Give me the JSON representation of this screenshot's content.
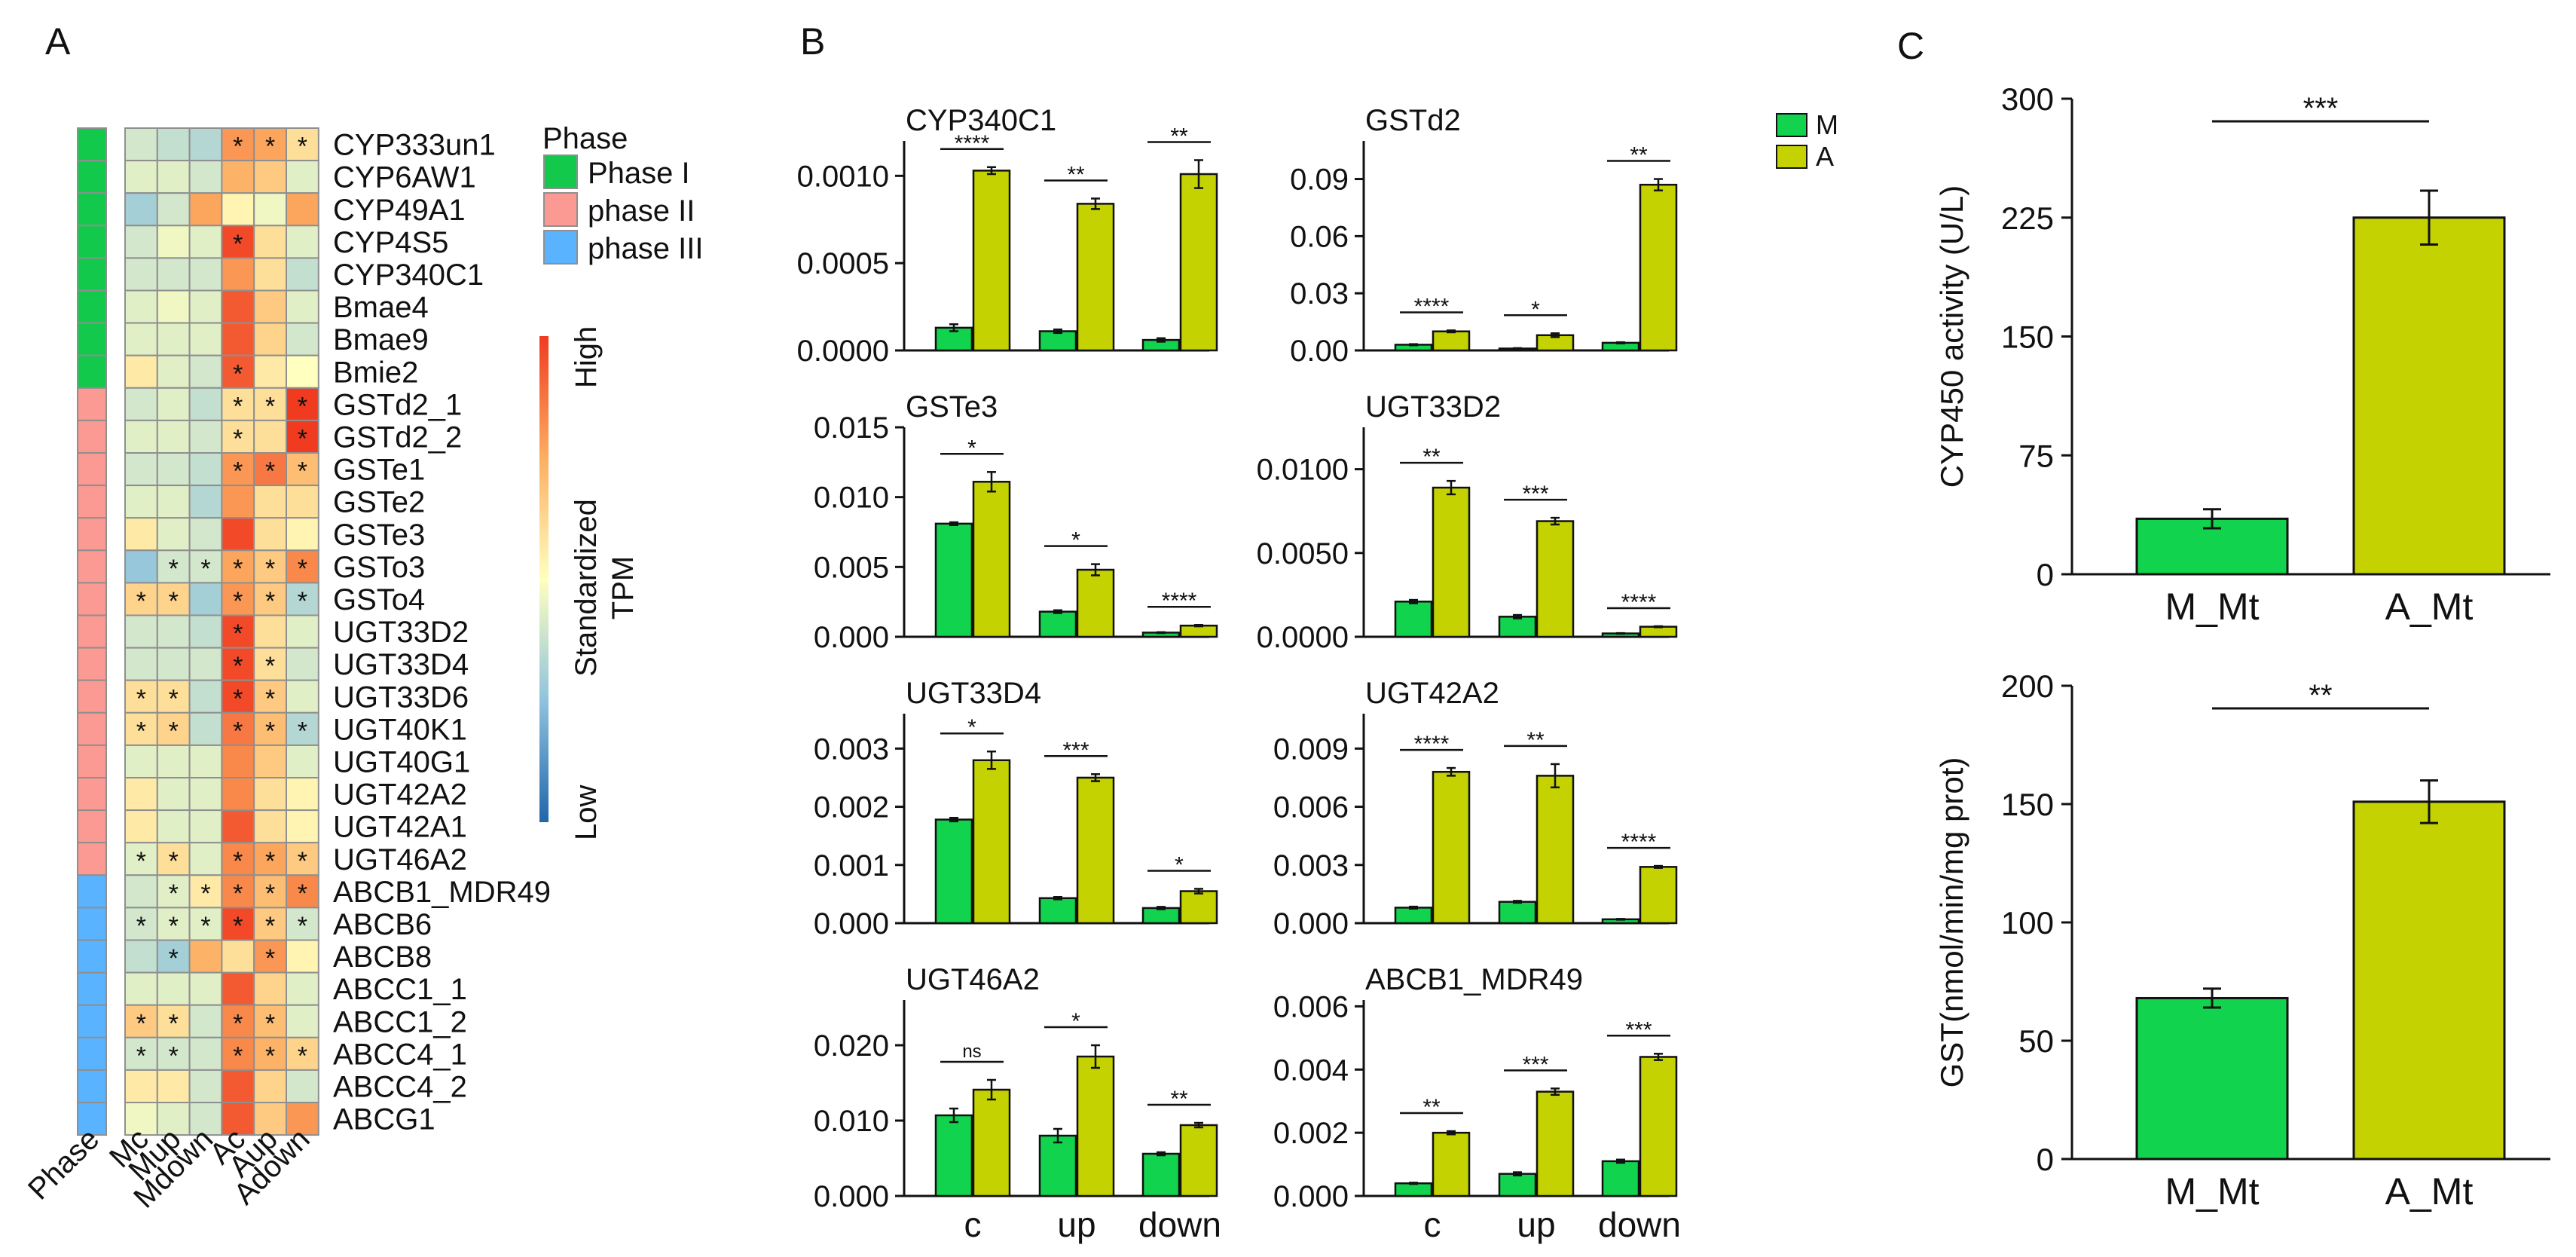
{
  "colors": {
    "M": "#11d34d",
    "A": "#c3d200",
    "phase_I": "#12c94c",
    "phase_II": "#fb9a92",
    "phase_III": "#5ab3ff",
    "cell_border": "#8f8f8f",
    "axis": "#111111"
  },
  "chart_data": [
    {
      "id": "A",
      "type": "heatmap",
      "panel_label": "A",
      "columns": [
        "Mc",
        "Mup",
        "Mdown",
        "Ac",
        "Aup",
        "Adown"
      ],
      "phase_column_label": "Phase",
      "legend": {
        "phase_title": "Phase",
        "phases": [
          "Phase I",
          "phase II",
          "phase III"
        ],
        "colorbar_title": "Standardized TPM",
        "colorbar_title_lines": [
          "Standardized",
          "TPM"
        ],
        "high_label": "High",
        "low_label": "Low",
        "scale": [
          -1.5,
          1.5
        ]
      },
      "genes": [
        "CYP333un1",
        "CYP6AW1",
        "CYP49A1",
        "CYP4S5",
        "CYP340C1",
        "Bmae4",
        "Bmae9",
        "Bmie2",
        "GSTd2_1",
        "GSTd2_2",
        "GSTe1",
        "GSTe2",
        "GSTe3",
        "GSTo3",
        "GSTo4",
        "UGT33D2",
        "UGT33D4",
        "UGT33D6",
        "UGT40K1",
        "UGT40G1",
        "UGT42A2",
        "UGT42A1",
        "UGT46A2",
        "ABCB1_MDR49",
        "ABCB6",
        "ABCB8",
        "ABCC1_1",
        "ABCC1_2",
        "ABCC4_1",
        "ABCC4_2",
        "ABCG1"
      ],
      "phase": [
        "I",
        "I",
        "I",
        "I",
        "I",
        "I",
        "I",
        "I",
        "II",
        "II",
        "II",
        "II",
        "II",
        "II",
        "II",
        "II",
        "II",
        "II",
        "II",
        "II",
        "II",
        "II",
        "II",
        "III",
        "III",
        "III",
        "III",
        "III",
        "III",
        "III",
        "III"
      ],
      "values": [
        [
          -0.3,
          -0.4,
          -0.5,
          0.9,
          0.8,
          0.3
        ],
        [
          -0.2,
          -0.2,
          -0.3,
          0.7,
          0.5,
          -0.2
        ],
        [
          -0.6,
          -0.3,
          0.8,
          0.1,
          -0.1,
          0.8
        ],
        [
          -0.3,
          -0.1,
          -0.2,
          1.4,
          0.3,
          -0.2
        ],
        [
          -0.3,
          -0.3,
          -0.3,
          0.9,
          0.3,
          -0.4
        ],
        [
          -0.2,
          -0.1,
          -0.2,
          1.3,
          0.5,
          -0.2
        ],
        [
          -0.2,
          -0.2,
          -0.2,
          1.3,
          0.4,
          -0.3
        ],
        [
          0.2,
          -0.2,
          -0.3,
          1.3,
          0.2,
          0.0
        ],
        [
          -0.3,
          -0.2,
          -0.4,
          0.3,
          0.3,
          1.5
        ],
        [
          -0.2,
          -0.2,
          -0.3,
          0.3,
          0.3,
          1.5
        ],
        [
          -0.3,
          -0.3,
          -0.4,
          0.9,
          1.1,
          0.6
        ],
        [
          -0.2,
          -0.2,
          -0.5,
          0.9,
          0.3,
          0.3
        ],
        [
          0.2,
          -0.2,
          -0.3,
          1.4,
          0.3,
          0.1
        ],
        [
          -0.7,
          -0.3,
          -0.3,
          0.8,
          0.5,
          1.0
        ],
        [
          0.4,
          0.4,
          -0.6,
          0.9,
          0.5,
          -0.5
        ],
        [
          -0.3,
          -0.3,
          -0.4,
          1.4,
          0.3,
          -0.2
        ],
        [
          -0.3,
          -0.3,
          -0.3,
          1.4,
          0.3,
          -0.3
        ],
        [
          0.3,
          0.3,
          -0.4,
          1.4,
          0.5,
          -0.2
        ],
        [
          0.3,
          0.4,
          -0.4,
          1.1,
          0.6,
          -0.5
        ],
        [
          -0.2,
          -0.2,
          -0.2,
          1.0,
          0.5,
          -0.2
        ],
        [
          0.2,
          -0.2,
          -0.2,
          1.0,
          0.3,
          0.1
        ],
        [
          0.2,
          -0.2,
          -0.2,
          1.3,
          0.3,
          0.1
        ],
        [
          -0.2,
          0.3,
          -0.2,
          1.0,
          0.8,
          0.5
        ],
        [
          -0.3,
          -0.2,
          0.2,
          1.0,
          0.6,
          1.0
        ],
        [
          -0.3,
          -0.2,
          -0.2,
          1.4,
          0.5,
          -0.3
        ],
        [
          -0.4,
          -0.6,
          0.7,
          0.3,
          0.9,
          0.1
        ],
        [
          -0.2,
          -0.2,
          -0.2,
          1.3,
          0.4,
          -0.2
        ],
        [
          0.5,
          0.3,
          -0.3,
          1.0,
          0.6,
          -0.2
        ],
        [
          -0.3,
          -0.3,
          -0.3,
          1.0,
          0.7,
          0.4
        ],
        [
          0.2,
          0.2,
          -0.3,
          1.3,
          0.4,
          -0.3
        ],
        [
          -0.1,
          -0.2,
          -0.3,
          1.3,
          0.5,
          0.9
        ]
      ],
      "stars": [
        [
          0,
          0,
          0,
          1,
          1,
          1
        ],
        [
          0,
          0,
          0,
          0,
          0,
          0
        ],
        [
          0,
          0,
          0,
          0,
          0,
          0
        ],
        [
          0,
          0,
          0,
          1,
          0,
          0
        ],
        [
          0,
          0,
          0,
          0,
          0,
          0
        ],
        [
          0,
          0,
          0,
          0,
          0,
          0
        ],
        [
          0,
          0,
          0,
          0,
          0,
          0
        ],
        [
          0,
          0,
          0,
          1,
          0,
          0
        ],
        [
          0,
          0,
          0,
          1,
          1,
          1
        ],
        [
          0,
          0,
          0,
          1,
          0,
          1
        ],
        [
          0,
          0,
          0,
          1,
          1,
          1
        ],
        [
          0,
          0,
          0,
          0,
          0,
          0
        ],
        [
          0,
          0,
          0,
          0,
          0,
          0
        ],
        [
          0,
          1,
          1,
          1,
          1,
          1
        ],
        [
          1,
          1,
          0,
          1,
          1,
          1
        ],
        [
          0,
          0,
          0,
          1,
          0,
          0
        ],
        [
          0,
          0,
          0,
          1,
          1,
          0
        ],
        [
          1,
          1,
          0,
          1,
          1,
          0
        ],
        [
          1,
          1,
          0,
          1,
          1,
          1
        ],
        [
          0,
          0,
          0,
          0,
          0,
          0
        ],
        [
          0,
          0,
          0,
          0,
          0,
          0
        ],
        [
          0,
          0,
          0,
          0,
          0,
          0
        ],
        [
          1,
          1,
          0,
          1,
          1,
          1
        ],
        [
          0,
          1,
          1,
          1,
          1,
          1
        ],
        [
          1,
          1,
          1,
          1,
          1,
          1
        ],
        [
          0,
          1,
          0,
          0,
          1,
          0
        ],
        [
          0,
          0,
          0,
          0,
          0,
          0
        ],
        [
          1,
          1,
          0,
          1,
          1,
          0
        ],
        [
          1,
          1,
          0,
          1,
          1,
          1
        ],
        [
          0,
          0,
          0,
          0,
          0,
          0
        ],
        [
          0,
          0,
          0,
          0,
          0,
          0
        ]
      ]
    },
    {
      "id": "B",
      "type": "bar",
      "panel_label": "B",
      "legend": [
        "M",
        "A"
      ],
      "categories": [
        "c",
        "up",
        "down"
      ],
      "subplots": [
        {
          "title": "CYP340C1",
          "ylim": [
            0,
            0.0012
          ],
          "ticks": [
            0,
            0.0005,
            0.001
          ],
          "tick_labels": [
            "0.0000",
            "0.0005",
            "0.0010"
          ],
          "series": [
            {
              "name": "M",
              "values": [
                0.00013,
                0.00011,
                6e-05
              ],
              "errors": [
                2e-05,
                1e-05,
                1e-05
              ]
            },
            {
              "name": "A",
              "values": [
                0.00103,
                0.00084,
                0.00101
              ],
              "errors": [
                2e-05,
                3e-05,
                8e-05
              ]
            }
          ],
          "significance": [
            "****",
            "**",
            "**"
          ]
        },
        {
          "title": "GSTd2",
          "ylim": [
            0,
            0.11
          ],
          "ticks": [
            0,
            0.03,
            0.06,
            0.09
          ],
          "tick_labels": [
            "0.00",
            "0.03",
            "0.06",
            "0.09"
          ],
          "series": [
            {
              "name": "M",
              "values": [
                0.003,
                0.001,
                0.004
              ],
              "errors": [
                0.0003,
                0.0002,
                0.0003
              ]
            },
            {
              "name": "A",
              "values": [
                0.01,
                0.008,
                0.087
              ],
              "errors": [
                0.0005,
                0.001,
                0.003
              ]
            }
          ],
          "significance": [
            "****",
            "*",
            "**"
          ]
        },
        {
          "title": "GSTe3",
          "ylim": [
            0,
            0.015
          ],
          "ticks": [
            0,
            0.005,
            0.01,
            0.015
          ],
          "tick_labels": [
            "0.000",
            "0.005",
            "0.010",
            "0.015"
          ],
          "series": [
            {
              "name": "M",
              "values": [
                0.0081,
                0.0018,
                0.0003
              ],
              "errors": [
                0.0001,
                0.0001,
                3e-05
              ]
            },
            {
              "name": "A",
              "values": [
                0.0111,
                0.0048,
                0.0008
              ],
              "errors": [
                0.0007,
                0.0004,
                5e-05
              ]
            }
          ],
          "significance": [
            "*",
            "*",
            "****"
          ]
        },
        {
          "title": "UGT33D2",
          "ylim": [
            0,
            0.0125
          ],
          "ticks": [
            0,
            0.005,
            0.01
          ],
          "tick_labels": [
            "0.0000",
            "0.0050",
            "0.0100"
          ],
          "series": [
            {
              "name": "M",
              "values": [
                0.0021,
                0.0012,
                0.0002
              ],
              "errors": [
                0.0001,
                0.0001,
                2e-05
              ]
            },
            {
              "name": "A",
              "values": [
                0.0089,
                0.0069,
                0.0006
              ],
              "errors": [
                0.0004,
                0.0002,
                3e-05
              ]
            }
          ],
          "significance": [
            "**",
            "***",
            "****"
          ]
        },
        {
          "title": "UGT33D4",
          "ylim": [
            0,
            0.0036
          ],
          "ticks": [
            0,
            0.001,
            0.002,
            0.003
          ],
          "tick_labels": [
            "0.000",
            "0.001",
            "0.002",
            "0.003"
          ],
          "series": [
            {
              "name": "M",
              "values": [
                0.00178,
                0.00043,
                0.00026
              ],
              "errors": [
                3e-05,
                2e-05,
                2e-05
              ]
            },
            {
              "name": "A",
              "values": [
                0.0028,
                0.0025,
                0.00055
              ],
              "errors": [
                0.00015,
                6e-05,
                4e-05
              ]
            }
          ],
          "significance": [
            "*",
            "***",
            "*"
          ]
        },
        {
          "title": "UGT42A2",
          "ylim": [
            0,
            0.0108
          ],
          "ticks": [
            0,
            0.003,
            0.006,
            0.009
          ],
          "tick_labels": [
            "0.000",
            "0.003",
            "0.006",
            "0.009"
          ],
          "series": [
            {
              "name": "M",
              "values": [
                0.0008,
                0.0011,
                0.0002
              ],
              "errors": [
                5e-05,
                5e-05,
                2e-05
              ]
            },
            {
              "name": "A",
              "values": [
                0.0078,
                0.0076,
                0.0029
              ],
              "errors": [
                0.0002,
                0.0006,
                5e-05
              ]
            }
          ],
          "significance": [
            "****",
            "**",
            "****"
          ]
        },
        {
          "title": "UGT46A2",
          "ylim": [
            0,
            0.026
          ],
          "ticks": [
            0,
            0.01,
            0.02
          ],
          "tick_labels": [
            "0.000",
            "0.010",
            "0.020"
          ],
          "series": [
            {
              "name": "M",
              "values": [
                0.0107,
                0.008,
                0.0056
              ],
              "errors": [
                0.0009,
                0.0009,
                0.0002
              ]
            },
            {
              "name": "A",
              "values": [
                0.0141,
                0.0185,
                0.0094
              ],
              "errors": [
                0.0013,
                0.0015,
                0.0003
              ]
            }
          ],
          "significance": [
            "ns",
            "*",
            "**"
          ]
        },
        {
          "title": "ABCB1_MDR49",
          "ylim": [
            0,
            0.0062
          ],
          "ticks": [
            0,
            0.002,
            0.004,
            0.006
          ],
          "tick_labels": [
            "0.000",
            "0.002",
            "0.004",
            "0.006"
          ],
          "series": [
            {
              "name": "M",
              "values": [
                0.0004,
                0.0007,
                0.0011
              ],
              "errors": [
                2e-05,
                5e-05,
                5e-05
              ]
            },
            {
              "name": "A",
              "values": [
                0.002,
                0.0033,
                0.0044
              ],
              "errors": [
                5e-05,
                0.0001,
                0.0001
              ]
            }
          ],
          "significance": [
            "**",
            "***",
            "***"
          ]
        }
      ]
    },
    {
      "id": "C1",
      "type": "bar",
      "panel_label": "C",
      "categories": [
        "M_Mt",
        "A_Mt"
      ],
      "values": [
        35,
        225
      ],
      "errors": [
        6,
        17
      ],
      "ylabel": "CYP450 activity (U/L)",
      "ylim": [
        0,
        300
      ],
      "ticks": [
        0,
        75,
        150,
        225,
        300
      ],
      "tick_labels": [
        "0",
        "75",
        "150",
        "225",
        "300"
      ],
      "significance": "***"
    },
    {
      "id": "C2",
      "type": "bar",
      "categories": [
        "M_Mt",
        "A_Mt"
      ],
      "values": [
        68,
        151
      ],
      "errors": [
        4,
        9
      ],
      "ylabel": "GST(nmol/min/mg prot)",
      "ylim": [
        0,
        200
      ],
      "ticks": [
        0,
        50,
        100,
        150,
        200
      ],
      "tick_labels": [
        "0",
        "50",
        "100",
        "150",
        "200"
      ],
      "significance": "**"
    }
  ]
}
